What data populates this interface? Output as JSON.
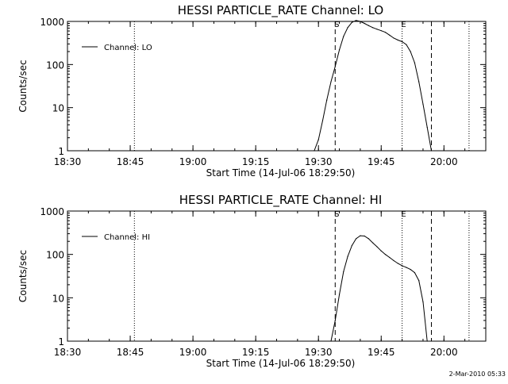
{
  "footer": {
    "timestamp": "2-Mar-2010 05:33"
  },
  "chart_data": [
    {
      "type": "line",
      "title": "HESSI PARTICLE_RATE Channel: LO",
      "xlabel": "Start Time (14-Jul-06 18:29:50)",
      "ylabel": "Counts/sec",
      "yscale": "log",
      "xlim": [
        "18:30",
        "20:10"
      ],
      "ylim": [
        1,
        1000
      ],
      "xticks": [
        "18:30",
        "18:45",
        "19:00",
        "19:15",
        "19:30",
        "19:45",
        "20:00"
      ],
      "yticks": [
        "1",
        "10",
        "100",
        "1000"
      ],
      "legend": {
        "position": "top-left",
        "entries": [
          "Channel: LO"
        ]
      },
      "markers": [
        {
          "time": "18:46",
          "style": "dotted"
        },
        {
          "time": "19:34",
          "style": "dashed",
          "label": "S"
        },
        {
          "time": "19:50",
          "style": "dotted",
          "label": "E"
        },
        {
          "time": "19:57",
          "style": "dashed"
        },
        {
          "time": "20:06",
          "style": "dotted"
        }
      ],
      "series": [
        {
          "name": "Channel: LO",
          "x": [
            "19:29",
            "19:30",
            "19:31",
            "19:32",
            "19:33",
            "19:34",
            "19:35",
            "19:36",
            "19:37",
            "19:38",
            "19:39",
            "19:40",
            "19:41",
            "19:42",
            "19:43",
            "19:44",
            "19:45",
            "19:46",
            "19:47",
            "19:48",
            "19:49",
            "19:50",
            "19:51",
            "19:52",
            "19:53",
            "19:54",
            "19:55",
            "19:56",
            "19:57"
          ],
          "y": [
            1,
            1.8,
            5,
            15,
            40,
            90,
            220,
            450,
            720,
            950,
            1050,
            1000,
            900,
            800,
            720,
            660,
            610,
            560,
            480,
            410,
            370,
            340,
            290,
            200,
            110,
            40,
            12,
            3.5,
            1
          ]
        }
      ]
    },
    {
      "type": "line",
      "title": "HESSI PARTICLE_RATE Channel: HI",
      "xlabel": "Start Time (14-Jul-06 18:29:50)",
      "ylabel": "Counts/sec",
      "yscale": "log",
      "xlim": [
        "18:30",
        "20:10"
      ],
      "ylim": [
        1,
        1000
      ],
      "xticks": [
        "18:30",
        "18:45",
        "19:00",
        "19:15",
        "19:30",
        "19:45",
        "20:00"
      ],
      "yticks": [
        "1",
        "10",
        "100",
        "1000"
      ],
      "legend": {
        "position": "top-left",
        "entries": [
          "Channel: HI"
        ]
      },
      "markers": [
        {
          "time": "18:46",
          "style": "dotted"
        },
        {
          "time": "19:34",
          "style": "dashed",
          "label": "S"
        },
        {
          "time": "19:50",
          "style": "dotted",
          "label": "E"
        },
        {
          "time": "19:57",
          "style": "dashed"
        },
        {
          "time": "20:06",
          "style": "dotted"
        }
      ],
      "series": [
        {
          "name": "Channel: HI",
          "x": [
            "19:33",
            "19:34",
            "19:35",
            "19:36",
            "19:37",
            "19:38",
            "19:39",
            "19:40",
            "19:41",
            "19:42",
            "19:43",
            "19:44",
            "19:45",
            "19:46",
            "19:47",
            "19:48",
            "19:49",
            "19:50",
            "19:51",
            "19:52",
            "19:53",
            "19:54",
            "19:55",
            "19:56"
          ],
          "y": [
            1,
            3,
            12,
            40,
            90,
            160,
            230,
            270,
            265,
            230,
            185,
            150,
            120,
            100,
            85,
            72,
            62,
            55,
            50,
            45,
            38,
            25,
            8,
            1
          ]
        }
      ]
    }
  ]
}
